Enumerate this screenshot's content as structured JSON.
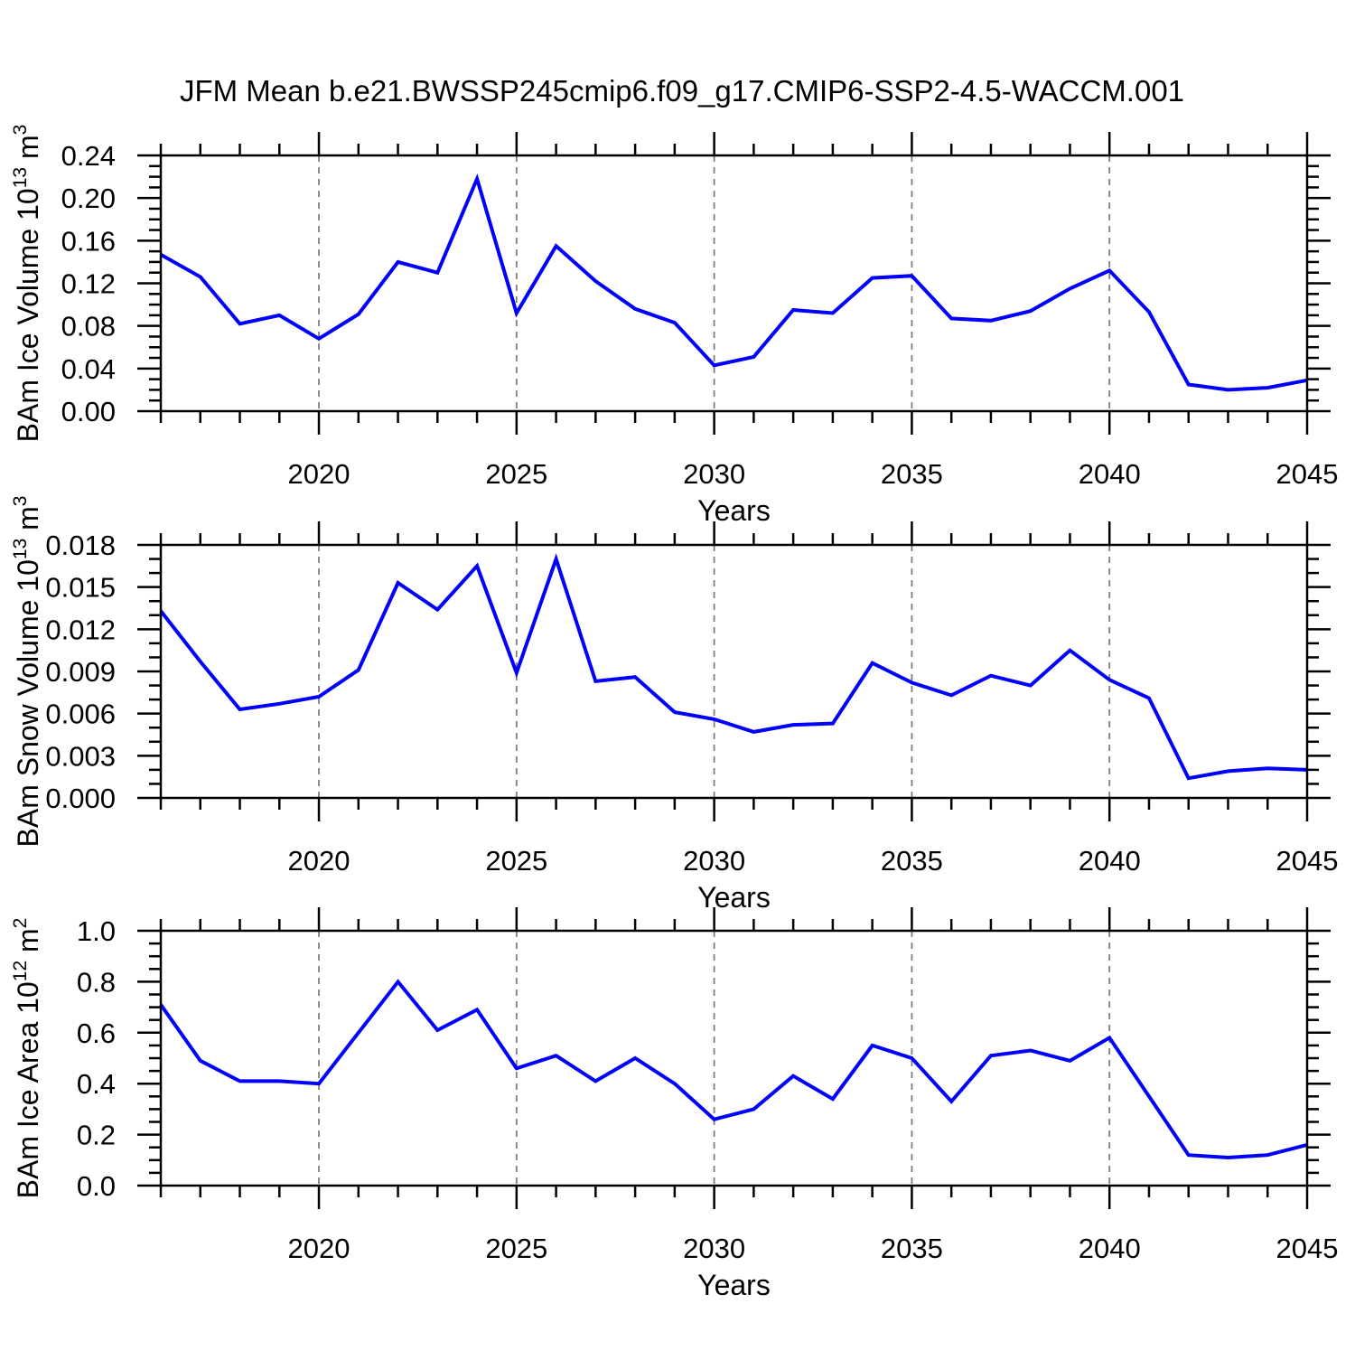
{
  "title": "JFM Mean b.e21.BWSSP245cmip6.f09_g17.CMIP6-SSP2-4.5-WACCM.001",
  "line_color": "#0000ff",
  "x_axis": {
    "label": "Years",
    "start": 2016,
    "end": 2045,
    "major_ticks": [
      2020,
      2025,
      2030,
      2035,
      2040,
      2045
    ],
    "minor_step": 1,
    "gridline_years": [
      2020,
      2025,
      2030,
      2035,
      2040
    ]
  },
  "years": [
    2016,
    2017,
    2018,
    2019,
    2020,
    2021,
    2022,
    2023,
    2024,
    2025,
    2026,
    2027,
    2028,
    2029,
    2030,
    2031,
    2032,
    2033,
    2034,
    2035,
    2036,
    2037,
    2038,
    2039,
    2040,
    2041,
    2042,
    2043,
    2044,
    2045
  ],
  "chart_data": [
    {
      "type": "line",
      "name": "bam-ice-volume",
      "ylabel_parts": [
        {
          "text": "BAm Ice Volume 10",
          "sup": false
        },
        {
          "text": "13",
          "sup": true
        },
        {
          "text": " m",
          "sup": false
        },
        {
          "text": "3",
          "sup": true
        }
      ],
      "xlabel": "Years",
      "ylim": [
        0.0,
        0.24
      ],
      "ymajor_step": 0.04,
      "yminor_step": 0.01,
      "ytick_decimals": 2,
      "grid": "vertical-dashed",
      "legend": "none",
      "values": [
        0.147,
        0.126,
        0.082,
        0.09,
        0.068,
        0.091,
        0.14,
        0.13,
        0.218,
        0.092,
        0.155,
        0.122,
        0.096,
        0.083,
        0.043,
        0.051,
        0.095,
        0.092,
        0.125,
        0.127,
        0.087,
        0.085,
        0.094,
        0.115,
        0.132,
        0.093,
        0.025,
        0.02,
        0.022,
        0.029
      ]
    },
    {
      "type": "line",
      "name": "bam-snow-volume",
      "ylabel_parts": [
        {
          "text": "BAm Snow Volume 10",
          "sup": false
        },
        {
          "text": "13",
          "sup": true
        },
        {
          "text": " m",
          "sup": false
        },
        {
          "text": "3",
          "sup": true
        }
      ],
      "xlabel": "Years",
      "ylim": [
        0.0,
        0.018
      ],
      "ymajor_step": 0.003,
      "yminor_step": 0.001,
      "ytick_decimals": 3,
      "grid": "vertical-dashed",
      "legend": "none",
      "values": [
        0.0133,
        0.0097,
        0.0063,
        0.0067,
        0.0072,
        0.0091,
        0.0153,
        0.0134,
        0.0165,
        0.0089,
        0.017,
        0.0083,
        0.0086,
        0.0061,
        0.0056,
        0.0047,
        0.0052,
        0.0053,
        0.0096,
        0.0082,
        0.0073,
        0.0087,
        0.008,
        0.0105,
        0.0084,
        0.0071,
        0.0014,
        0.0019,
        0.0021,
        0.002
      ]
    },
    {
      "type": "line",
      "name": "bam-ice-area",
      "ylabel_parts": [
        {
          "text": "BAm Ice Area 10",
          "sup": false
        },
        {
          "text": "12",
          "sup": true
        },
        {
          "text": " m",
          "sup": false
        },
        {
          "text": "2",
          "sup": true
        }
      ],
      "xlabel": "Years",
      "ylim": [
        0.0,
        1.0
      ],
      "ymajor_step": 0.2,
      "yminor_step": 0.05,
      "ytick_decimals": 1,
      "grid": "vertical-dashed",
      "legend": "none",
      "values": [
        0.71,
        0.49,
        0.41,
        0.41,
        0.4,
        0.6,
        0.8,
        0.61,
        0.69,
        0.46,
        0.51,
        0.41,
        0.5,
        0.4,
        0.26,
        0.3,
        0.43,
        0.34,
        0.55,
        0.5,
        0.33,
        0.51,
        0.53,
        0.49,
        0.58,
        0.35,
        0.12,
        0.11,
        0.12,
        0.16
      ]
    }
  ]
}
